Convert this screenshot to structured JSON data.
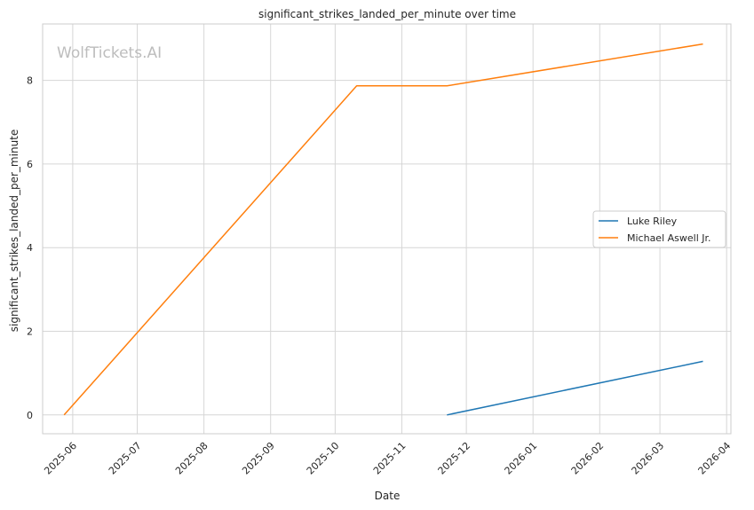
{
  "watermark": "WolfTickets.AI",
  "chart_data": {
    "type": "line",
    "title": "significant_strikes_landed_per_minute over time",
    "xlabel": "Date",
    "ylabel": "significant_strikes_landed_per_minute",
    "x_type": "date",
    "xlim": [
      "2025-05-18",
      "2026-04-03"
    ],
    "ylim": [
      -0.45,
      9.35
    ],
    "x_ticks": [
      "2025-06",
      "2025-07",
      "2025-08",
      "2025-09",
      "2025-10",
      "2025-11",
      "2025-12",
      "2026-01",
      "2026-02",
      "2026-03",
      "2026-04"
    ],
    "y_ticks": [
      0,
      2,
      4,
      6,
      8
    ],
    "grid": true,
    "legend_position": "center-right",
    "series": [
      {
        "name": "Luke Riley",
        "color": "#1f77b4",
        "points": [
          {
            "x": "2025-11-22",
            "y": 0
          },
          {
            "x": "2026-03-21",
            "y": 1.28
          }
        ]
      },
      {
        "name": "Michael Aswell Jr.",
        "color": "#ff7f0e",
        "points": [
          {
            "x": "2025-05-28",
            "y": 0
          },
          {
            "x": "2025-10-11",
            "y": 7.87
          },
          {
            "x": "2025-11-22",
            "y": 7.87
          },
          {
            "x": "2026-03-21",
            "y": 8.87
          }
        ]
      }
    ]
  }
}
